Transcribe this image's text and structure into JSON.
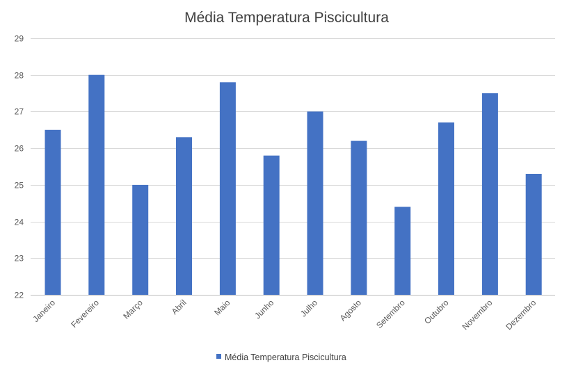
{
  "chart_data": {
    "type": "bar",
    "title": "Média Temperatura Piscicultura",
    "xlabel": "",
    "ylabel": "",
    "categories": [
      "Janeiro",
      "Fevereiro",
      "Março",
      "Abril",
      "Maio",
      "Junho",
      "Julho",
      "Agosto",
      "Setembro",
      "Outubro",
      "Novembro",
      "Dezembro"
    ],
    "series": [
      {
        "name": "Média Temperatura Piscicultura",
        "values": [
          26.5,
          28.0,
          25.0,
          26.3,
          27.8,
          25.8,
          27.0,
          26.2,
          24.4,
          26.7,
          27.5,
          25.3
        ],
        "color": "#4472c4"
      }
    ],
    "ylim": [
      22,
      29
    ],
    "yticks": [
      22,
      23,
      24,
      25,
      26,
      27,
      28,
      29
    ],
    "grid": true,
    "legend": "bottom",
    "colors": {
      "grid": "#d9d9d9",
      "text": "#595959",
      "title": "#404040"
    }
  }
}
